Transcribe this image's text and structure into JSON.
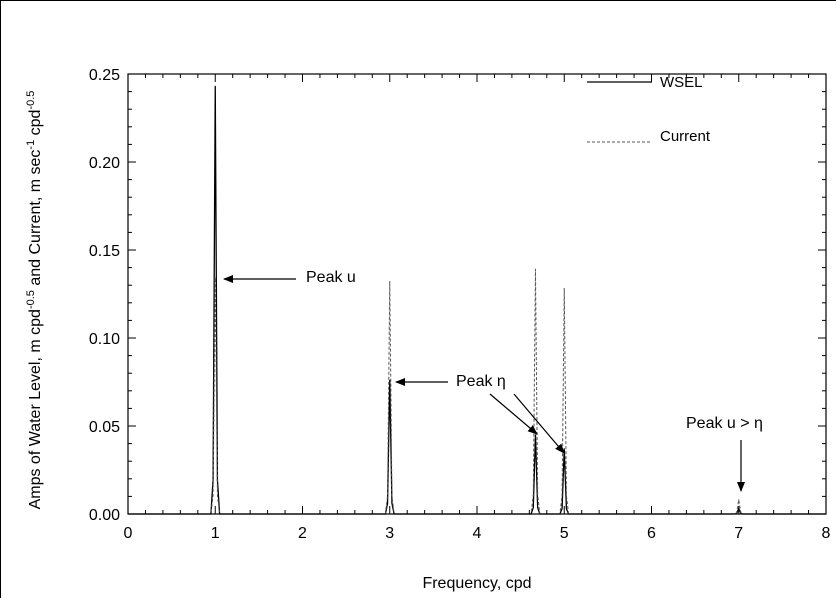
{
  "chart_data": {
    "type": "line",
    "title": "",
    "xlabel": "Frequency, cpd",
    "ylabel": {
      "main": "Amps of Water Level, m cpd",
      "exp1": "-0.5",
      "mid": " and Current, m sec",
      "exp2": "-1",
      "tail": " cpd",
      "exp3": "-0.5"
    },
    "xlim": [
      0,
      8
    ],
    "ylim": [
      0,
      0.25
    ],
    "x_ticks": [
      "0",
      "1",
      "2",
      "3",
      "4",
      "5",
      "6",
      "7",
      "8"
    ],
    "y_ticks": [
      "0.00",
      "0.05",
      "0.10",
      "0.15",
      "0.20",
      "0.25"
    ],
    "grid": false,
    "legend_position": "top-right",
    "series": [
      {
        "name": "WSEL",
        "style": "solid",
        "color": "#000000",
        "peaks": [
          {
            "x": 1.0,
            "y": 0.243
          },
          {
            "x": 3.0,
            "y": 0.076
          },
          {
            "x": 4.67,
            "y": 0.045
          },
          {
            "x": 5.0,
            "y": 0.037
          },
          {
            "x": 7.0,
            "y": 0.003
          }
        ]
      },
      {
        "name": "Current",
        "style": "dashed",
        "color": "#555555",
        "peaks": [
          {
            "x": 1.0,
            "y": 0.134
          },
          {
            "x": 3.0,
            "y": 0.132
          },
          {
            "x": 4.67,
            "y": 0.139
          },
          {
            "x": 5.0,
            "y": 0.128
          },
          {
            "x": 7.0,
            "y": 0.008
          }
        ]
      }
    ],
    "annotations": [
      {
        "text": "Peak u",
        "x": 1.0,
        "y": 0.134
      },
      {
        "text": "Peak η",
        "x": 3.0,
        "y": 0.075
      },
      {
        "text": "Peak u > η",
        "x": 7.0,
        "y": 0.013
      }
    ]
  }
}
